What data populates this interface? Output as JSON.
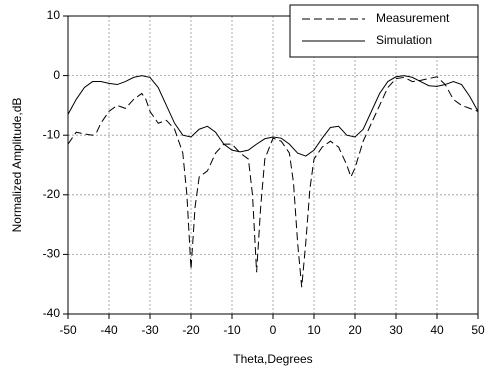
{
  "chart_data": {
    "type": "line",
    "xlabel": "Theta,Degrees",
    "ylabel": "Normalized Amplitude,dB",
    "xlim": [
      -50,
      50
    ],
    "xticks": [
      -50,
      -40,
      -30,
      -20,
      -10,
      0,
      10,
      20,
      30,
      40,
      50
    ],
    "ylim": [
      -40,
      10
    ],
    "yticks": [
      -40,
      -30,
      -20,
      -10,
      0,
      10
    ],
    "grid": true,
    "legend": "upper right",
    "series": [
      {
        "name": "Measurement",
        "color": "#000000",
        "dash": true,
        "x": [
          -50,
          -49,
          -48,
          -46,
          -44,
          -43,
          -42,
          -40,
          -38,
          -36,
          -34,
          -32,
          -31,
          -30,
          -28,
          -26,
          -24,
          -22,
          -21,
          -20,
          -19,
          -18,
          -16,
          -14,
          -12,
          -10,
          -8,
          -6,
          -5,
          -4,
          -3,
          -2,
          0,
          2,
          4,
          5,
          6,
          7,
          8,
          9,
          10,
          12,
          14,
          16,
          18,
          19,
          20,
          22,
          24,
          26,
          28,
          30,
          32,
          34,
          36,
          38,
          40,
          42,
          44,
          46,
          48,
          50
        ],
        "values": [
          -11.5,
          -10.5,
          -9.5,
          -9.8,
          -10,
          -9.5,
          -8,
          -6,
          -5,
          -5.5,
          -4,
          -3,
          -4,
          -6,
          -8,
          -7.5,
          -9,
          -13,
          -20,
          -32.5,
          -22,
          -17,
          -16,
          -13,
          -11.5,
          -11.5,
          -13,
          -14,
          -20,
          -33,
          -22,
          -14,
          -10.5,
          -11,
          -13,
          -18,
          -28,
          -35.5,
          -28,
          -19,
          -14,
          -12,
          -11,
          -12,
          -15,
          -17,
          -15.5,
          -11,
          -8,
          -5,
          -2,
          -0.5,
          -0.3,
          -1,
          -0.8,
          -0.5,
          -0.2,
          -1.5,
          -4,
          -5,
          -5.5,
          -6
        ]
      },
      {
        "name": "Simulation",
        "color": "#000000",
        "dash": false,
        "x": [
          -50,
          -48,
          -46,
          -44,
          -42,
          -40,
          -38,
          -36,
          -34,
          -32,
          -30,
          -28,
          -26,
          -24,
          -22,
          -20,
          -18,
          -16,
          -14,
          -12,
          -10,
          -8,
          -6,
          -4,
          -2,
          0,
          2,
          4,
          6,
          8,
          10,
          12,
          14,
          16,
          18,
          20,
          22,
          24,
          26,
          28,
          30,
          32,
          34,
          36,
          38,
          40,
          42,
          44,
          46,
          48,
          50
        ],
        "values": [
          -6.5,
          -4,
          -2,
          -1,
          -1,
          -1.3,
          -1.5,
          -1,
          -0.3,
          0,
          -0.3,
          -2,
          -5,
          -8,
          -10,
          -10.3,
          -9,
          -8.5,
          -9.5,
          -11.5,
          -12.5,
          -12.8,
          -12.5,
          -11.5,
          -10.6,
          -10.3,
          -10.5,
          -11.5,
          -13,
          -13.5,
          -12.5,
          -10.5,
          -8.7,
          -8.5,
          -10,
          -10.3,
          -9,
          -6,
          -3,
          -1,
          -0.2,
          0,
          -0.3,
          -1,
          -1.7,
          -1.8,
          -1.5,
          -1,
          -1.5,
          -3.5,
          -6
        ]
      }
    ]
  }
}
